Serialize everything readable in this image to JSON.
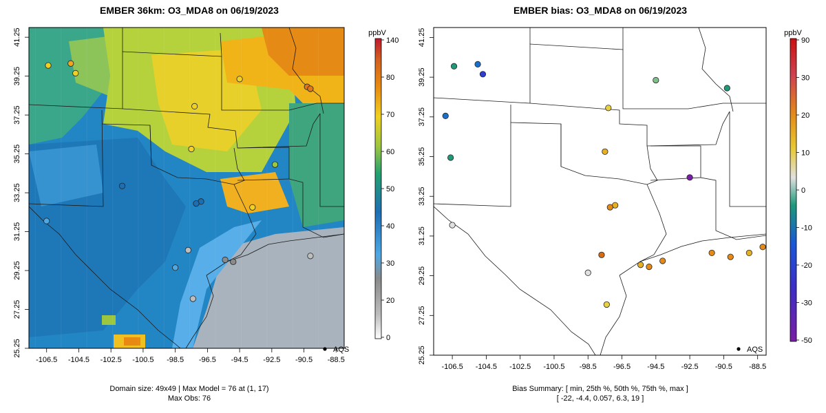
{
  "chart_data": [
    {
      "type": "heatmap",
      "title": "EMBER 36km: O3_MDA8 on 06/19/2023",
      "x_ticks": [
        "-106.5",
        "-104.5",
        "-102.5",
        "-100.5",
        "-98.5",
        "-96.5",
        "-94.5",
        "-92.5",
        "-90.5",
        "-88.5"
      ],
      "y_ticks": [
        "25.25",
        "27.25",
        "29.25",
        "31.25",
        "33.25",
        "35.25",
        "37.25",
        "39.25",
        "41.25"
      ],
      "xlim": [
        -107.6,
        -88
      ],
      "ylim": [
        25.25,
        41.75
      ],
      "legend": {
        "unit": "ppbV",
        "ticks": [
          "140",
          "80",
          "70",
          "60",
          "50",
          "40",
          "30",
          "20",
          "0"
        ]
      },
      "legend_marker": "AQS",
      "footer": [
        "Domain size: 49x49 | Max Model = 76 at (1, 17)",
        "Max Obs: 76"
      ],
      "model_field_regions": [
        {
          "region": "Gulf of Mexico",
          "value": 24
        },
        {
          "region": "South Texas",
          "value": 38
        },
        {
          "region": "West Texas / New Mexico",
          "value": 44
        },
        {
          "region": "Central Plains",
          "value": 57
        },
        {
          "region": "Missouri / Illinois",
          "value": 66
        }
      ],
      "obs_points": [
        {
          "lon": -106.4,
          "lat": 39.8,
          "value": 62
        },
        {
          "lon": -105.0,
          "lat": 39.9,
          "value": 66
        },
        {
          "lon": -104.7,
          "lat": 39.4,
          "value": 64
        },
        {
          "lon": -97.3,
          "lat": 37.7,
          "value": 60
        },
        {
          "lon": -94.5,
          "lat": 39.1,
          "value": 64
        },
        {
          "lon": -90.3,
          "lat": 38.7,
          "value": 73
        },
        {
          "lon": -90.1,
          "lat": 38.6,
          "value": 76
        },
        {
          "lon": -97.5,
          "lat": 35.5,
          "value": 63
        },
        {
          "lon": -96.9,
          "lat": 32.8,
          "value": 44
        },
        {
          "lon": -97.2,
          "lat": 32.7,
          "value": 42
        },
        {
          "lon": -95.4,
          "lat": 29.8,
          "value": 28
        },
        {
          "lon": -94.9,
          "lat": 29.7,
          "value": 30
        },
        {
          "lon": -97.7,
          "lat": 30.3,
          "value": 26
        },
        {
          "lon": -98.5,
          "lat": 29.4,
          "value": 36
        },
        {
          "lon": -97.4,
          "lat": 27.8,
          "value": 24
        },
        {
          "lon": -106.5,
          "lat": 31.8,
          "value": 38
        },
        {
          "lon": -101.8,
          "lat": 33.6,
          "value": 44
        },
        {
          "lon": -90.1,
          "lat": 30.0,
          "value": 26
        },
        {
          "lon": -93.7,
          "lat": 32.5,
          "value": 64
        },
        {
          "lon": -92.3,
          "lat": 34.7,
          "value": 58
        }
      ]
    },
    {
      "type": "scatter",
      "title": "EMBER bias: O3_MDA8 on 06/19/2023",
      "x_ticks": [
        "-106.5",
        "-104.5",
        "-102.5",
        "-100.5",
        "-98.5",
        "-96.5",
        "-94.5",
        "-92.5",
        "-90.5",
        "-88.5"
      ],
      "y_ticks": [
        "25.25",
        "27.25",
        "29.25",
        "31.25",
        "33.25",
        "35.25",
        "37.25",
        "39.25",
        "41.25"
      ],
      "xlim": [
        -107.6,
        -88
      ],
      "ylim": [
        25.25,
        41.75
      ],
      "legend": {
        "unit": "ppbV",
        "ticks": [
          "90",
          "30",
          "20",
          "10",
          "0",
          "-10",
          "-20",
          "-30",
          "-50"
        ]
      },
      "legend_marker": "AQS",
      "footer": [
        "Bias Summary: [ min, 25th %, 50th %, 75th %, max ]",
        "[ -22,   -4.4,   0.057,   6.3,   19 ]"
      ],
      "bias_summary": {
        "min": -22,
        "p25": -4.4,
        "p50": 0.057,
        "p75": 6.3,
        "max": 19
      },
      "bias_points": [
        {
          "lon": -106.4,
          "lat": 39.8,
          "value": -6
        },
        {
          "lon": -105.0,
          "lat": 39.9,
          "value": -8
        },
        {
          "lon": -104.7,
          "lat": 39.4,
          "value": -14
        },
        {
          "lon": -106.9,
          "lat": 37.3,
          "value": -9
        },
        {
          "lon": -106.6,
          "lat": 35.2,
          "value": -5
        },
        {
          "lon": -97.3,
          "lat": 37.7,
          "value": 4
        },
        {
          "lon": -94.5,
          "lat": 39.1,
          "value": -2
        },
        {
          "lon": -90.3,
          "lat": 38.7,
          "value": -4
        },
        {
          "lon": -92.5,
          "lat": 34.2,
          "value": -22
        },
        {
          "lon": -97.5,
          "lat": 35.5,
          "value": 6
        },
        {
          "lon": -96.9,
          "lat": 32.8,
          "value": 9
        },
        {
          "lon": -97.2,
          "lat": 32.7,
          "value": 10
        },
        {
          "lon": -95.4,
          "lat": 29.8,
          "value": 8
        },
        {
          "lon": -94.9,
          "lat": 29.7,
          "value": 12
        },
        {
          "lon": -94.1,
          "lat": 30.0,
          "value": 13
        },
        {
          "lon": -91.2,
          "lat": 30.4,
          "value": 11
        },
        {
          "lon": -90.1,
          "lat": 30.2,
          "value": 14
        },
        {
          "lon": -89.0,
          "lat": 30.4,
          "value": 9
        },
        {
          "lon": -88.2,
          "lat": 30.7,
          "value": 13
        },
        {
          "lon": -97.4,
          "lat": 27.8,
          "value": 5
        },
        {
          "lon": -98.5,
          "lat": 29.4,
          "value": 1
        },
        {
          "lon": -106.5,
          "lat": 31.8,
          "value": 1
        },
        {
          "lon": -97.7,
          "lat": 30.3,
          "value": 19
        }
      ]
    }
  ]
}
